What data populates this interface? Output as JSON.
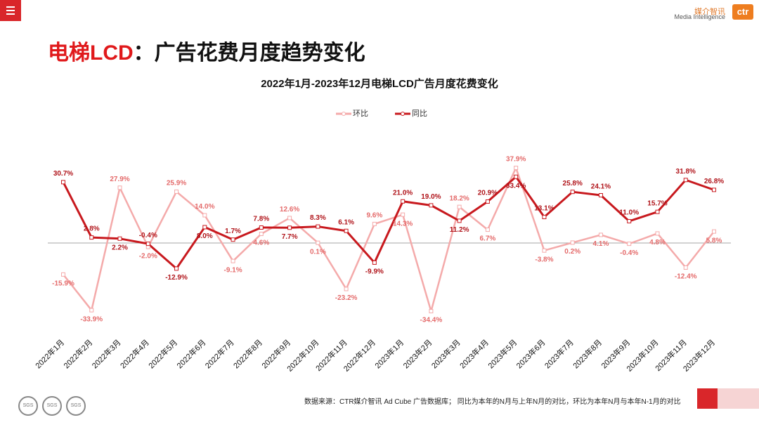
{
  "header": {
    "logo_cn": "媒介智讯",
    "logo_en": "Media Intelligence",
    "logo_mark": "ctr"
  },
  "slide_title": {
    "highlight": "电梯LCD",
    "rest": "：广告花费月度趋势变化"
  },
  "chart_data": {
    "type": "line",
    "title": "2022年1月-2023年12月电梯LCD广告月度花费变化",
    "categories": [
      "2022年1月",
      "2022年2月",
      "2022年3月",
      "2022年4月",
      "2022年5月",
      "2022年6月",
      "2022年7月",
      "2022年8月",
      "2022年9月",
      "2022年10月",
      "2022年11月",
      "2022年12月",
      "2023年1月",
      "2023年2月",
      "2023年3月",
      "2023年4月",
      "2023年5月",
      "2023年6月",
      "2023年7月",
      "2023年8月",
      "2023年9月",
      "2023年10月",
      "2023年11月",
      "2023年12月"
    ],
    "series": [
      {
        "name": "环比",
        "color": "#f4aaaa",
        "label_color": "#e46a6a",
        "values": [
          -15.9,
          -33.9,
          27.9,
          -2.0,
          25.9,
          14.0,
          -9.1,
          4.6,
          12.6,
          0.1,
          -23.2,
          9.6,
          14.3,
          -34.4,
          18.2,
          6.7,
          37.9,
          -3.8,
          0.2,
          4.1,
          -0.4,
          4.8,
          -12.4,
          5.8
        ],
        "value_labels": [
          "-15.9%",
          "-33.9%",
          "27.9%",
          "-2.0%",
          "25.9%",
          "14.0%",
          "-9.1%",
          "4.6%",
          "12.6%",
          "0.1%",
          "-23.2%",
          "9.6%",
          "14.3%",
          "-34.4%",
          "18.2%",
          "6.7%",
          "37.9%",
          "-3.8%",
          "0.2%",
          "4.1%",
          "-0.4%",
          "4.8%",
          "-12.4%",
          "5.8%"
        ]
      },
      {
        "name": "同比",
        "color": "#c8191e",
        "label_color": "#b0141a",
        "values": [
          30.7,
          2.8,
          2.2,
          -0.4,
          -12.9,
          8.0,
          1.7,
          7.8,
          7.7,
          8.3,
          6.1,
          -9.9,
          21.0,
          19.0,
          11.2,
          20.9,
          33.4,
          13.1,
          25.8,
          24.1,
          11.0,
          15.7,
          31.8,
          26.8
        ],
        "value_labels": [
          "30.7%",
          "2.8%",
          "2.2%",
          "-0.4%",
          "-12.9%",
          "8.0%",
          "1.7%",
          "7.8%",
          "7.7%",
          "8.3%",
          "6.1%",
          "-9.9%",
          "21.0%",
          "19.0%",
          "11.2%",
          "20.9%",
          "33.4%",
          "13.1%",
          "25.8%",
          "24.1%",
          "11.0%",
          "15.7%",
          "31.8%",
          "26.8%"
        ]
      }
    ],
    "ylim": [
      -45,
      45
    ],
    "legend": "top"
  },
  "footer": {
    "source": "数据来源：CTR媒介智讯 Ad Cube 广告数据库； 同比为本年的N月与上年N月的对比，环比为本年N月与本年N-1月的对比"
  },
  "badges": [
    "SGS",
    "SGS",
    "SGS"
  ]
}
